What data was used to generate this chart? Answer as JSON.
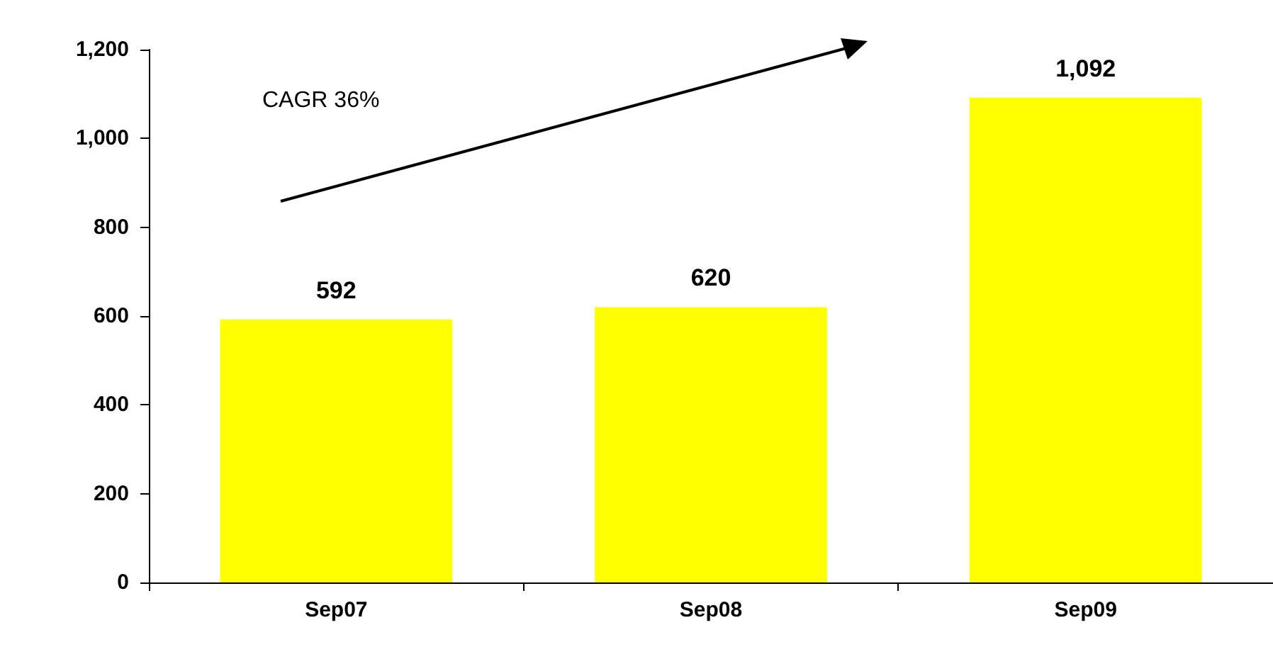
{
  "chart_data": {
    "type": "bar",
    "categories": [
      "Sep07",
      "Sep08",
      "Sep09"
    ],
    "values": [
      592,
      620,
      1092
    ],
    "color": "#ffff00",
    "value_labels": [
      "592",
      "620",
      "1,092"
    ],
    "ylim": [
      0,
      1200
    ],
    "yticks": [
      0,
      200,
      400,
      600,
      800,
      {
        "value": 1000,
        "label": "1,000"
      },
      {
        "value": 1200,
        "label": "1,200"
      }
    ],
    "annotations": [
      "CAGR 36%"
    ]
  }
}
